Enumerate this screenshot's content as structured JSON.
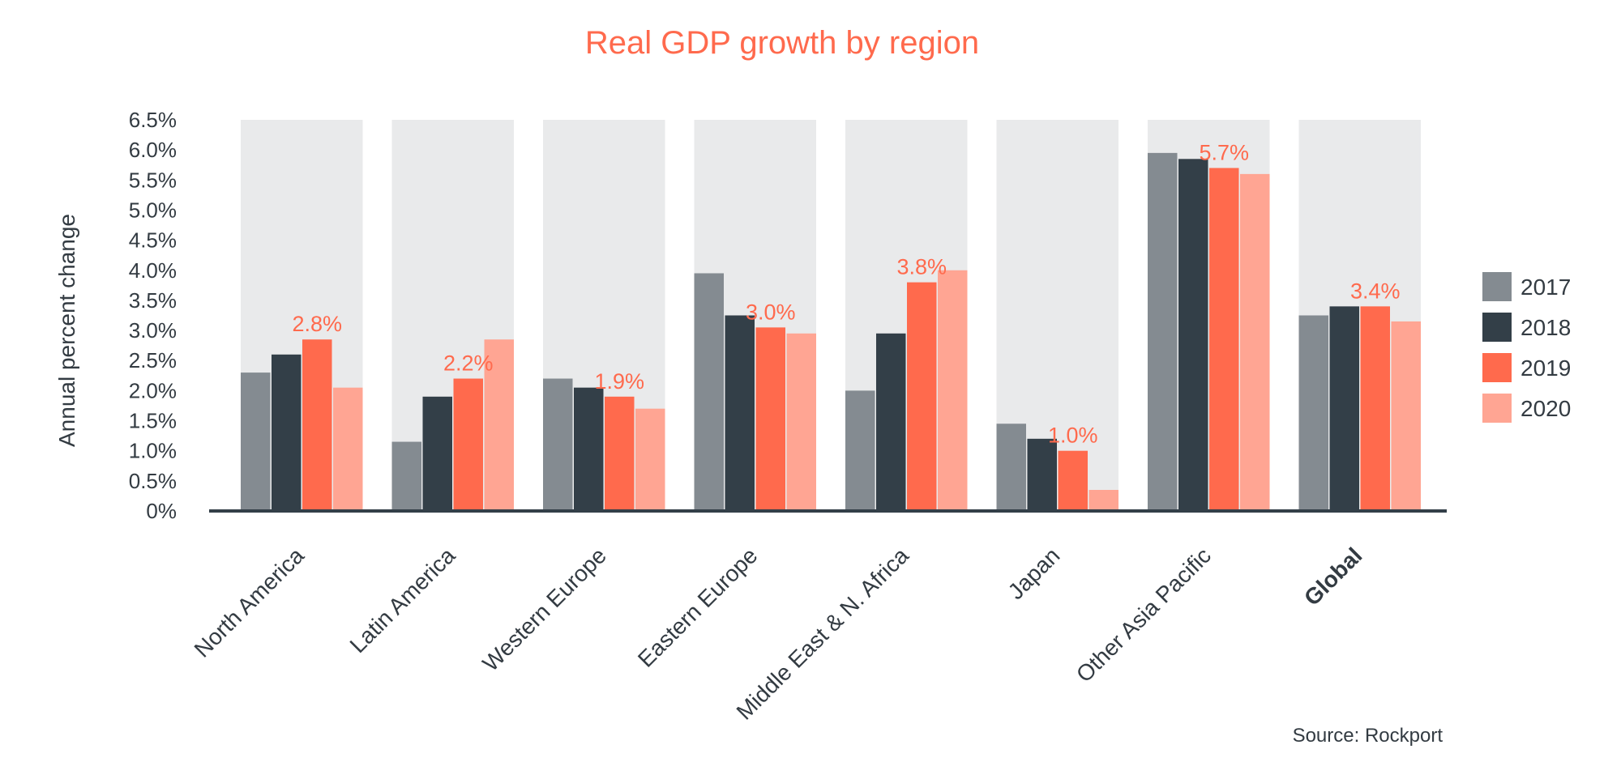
{
  "chart_data": {
    "type": "bar",
    "title": "Real GDP growth by region",
    "ylabel": "Annual percent change",
    "xlabel": "",
    "ylim": [
      0,
      6.5
    ],
    "yticks": [
      "0%",
      "0.5%",
      "1.0%",
      "1.5%",
      "2.0%",
      "2.5%",
      "3.0%",
      "3.5%",
      "4.0%",
      "4.5%",
      "5.0%",
      "5.5%",
      "6.0%",
      "6.5%"
    ],
    "categories": [
      "North America",
      "Latin America",
      "Western Europe",
      "Eastern Europe",
      "Middle East & N. Africa",
      "Japan",
      "Other Asia Pacific",
      "Global"
    ],
    "bold_categories": [
      "Global"
    ],
    "series": [
      {
        "name": "2017",
        "color": "#848b91",
        "values": [
          2.3,
          1.15,
          2.2,
          3.95,
          2.0,
          1.45,
          5.95,
          3.25
        ]
      },
      {
        "name": "2018",
        "color": "#333f48",
        "values": [
          2.6,
          1.9,
          2.05,
          3.25,
          2.95,
          1.2,
          5.85,
          3.4
        ]
      },
      {
        "name": "2019",
        "color": "#ff6a4d",
        "values": [
          2.85,
          2.2,
          1.9,
          3.05,
          3.8,
          1.0,
          5.7,
          3.4
        ]
      },
      {
        "name": "2020",
        "color": "#ffa593",
        "values": [
          2.05,
          2.85,
          1.7,
          2.95,
          4.0,
          0.35,
          5.6,
          3.15
        ]
      }
    ],
    "data_labels": [
      "2.8%",
      "2.2%",
      "1.9%",
      "3.0%",
      "3.8%",
      "1.0%",
      "5.7%",
      "3.4%"
    ],
    "data_label_series": "2019",
    "background_band_color": "#e9eaeb",
    "legend_position": "right",
    "grid": false,
    "source": "Source: Rockport"
  }
}
